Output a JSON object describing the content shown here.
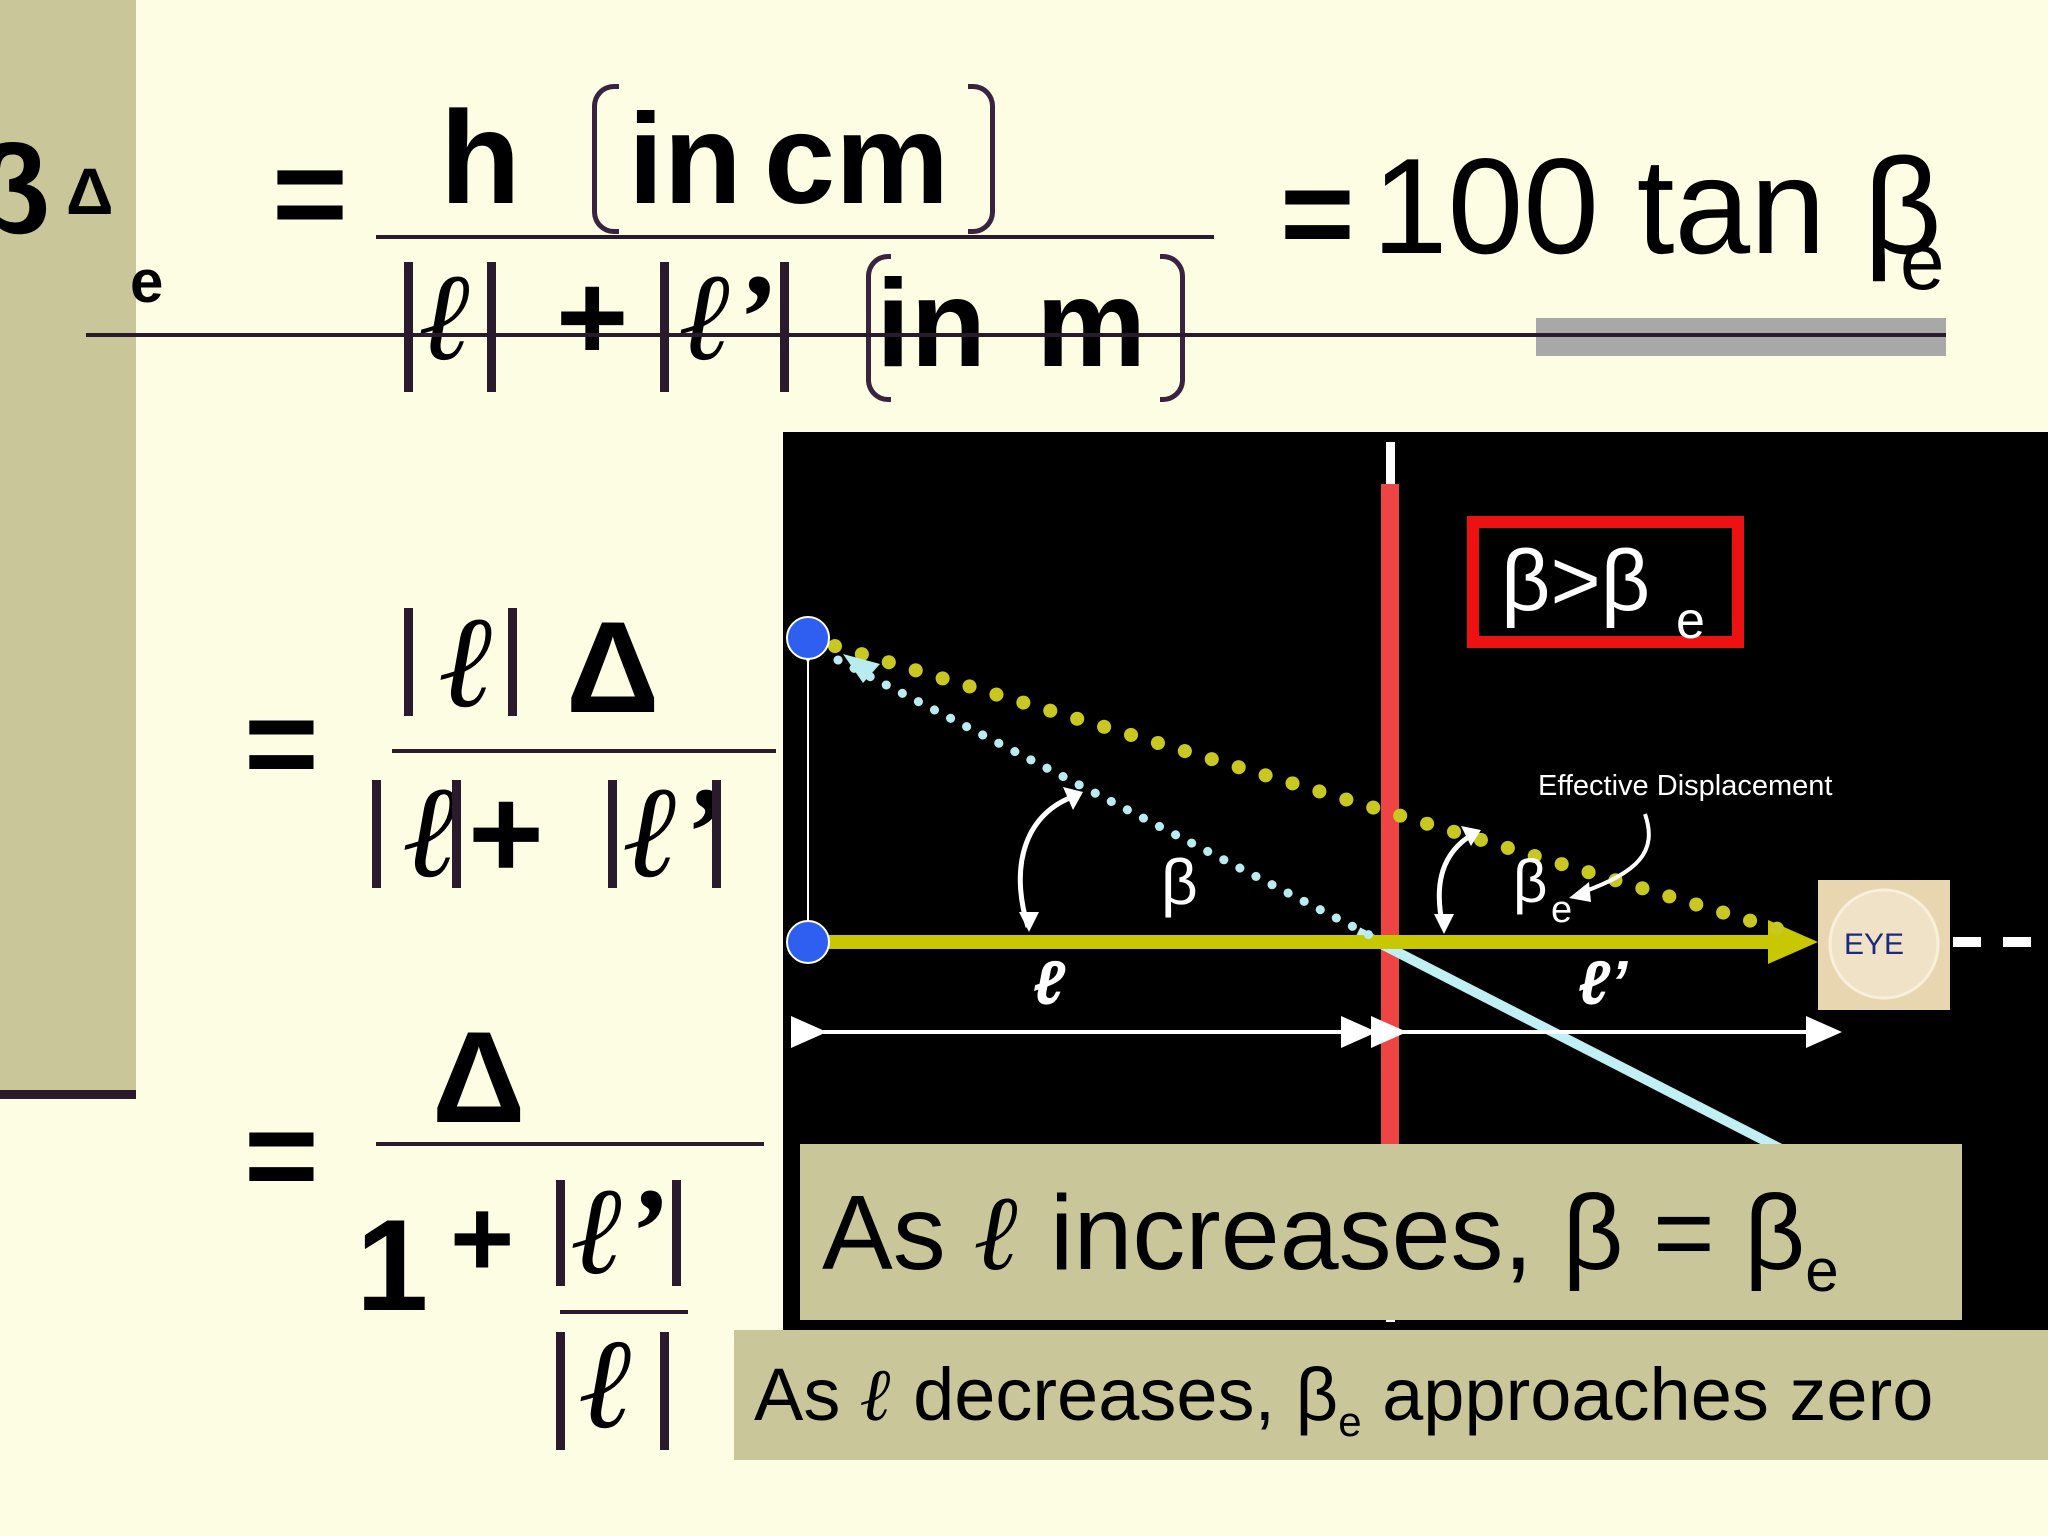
{
  "formula_top": {
    "lhs_symbol": "β",
    "lhs_super": "Δ",
    "lhs_sub": "e",
    "equals": "=",
    "num_h": "h",
    "num_in": "in",
    "num_cm": "cm",
    "den_l": "ℓ",
    "den_plus": "+",
    "den_lp": "ℓ’",
    "den_in": "in",
    "den_m": "m",
    "rhs_equals": "=",
    "rhs_expr": "100 tan β",
    "rhs_sub": "e"
  },
  "formula_mid": {
    "equals": "=",
    "num_l": "ℓ",
    "num_delta": "Δ",
    "den_l": "ℓ",
    "den_plus": "+",
    "den_lp": "ℓ’"
  },
  "formula_low": {
    "equals": "=",
    "num_delta": "Δ",
    "den_one": "1",
    "den_plus": "+",
    "frac_num": "ℓ’",
    "frac_den": "ℓ"
  },
  "diagram": {
    "relation_beta": "β>β",
    "relation_sub": "e",
    "effective_label": "Effective Displacement",
    "beta_label": "β",
    "beta_e_label": "β",
    "beta_e_sub": "e",
    "ell_label": "ℓ",
    "ell_prime_label": "ℓ’",
    "eye_label": "EYE",
    "colors": {
      "background": "#000000",
      "lens": "#ef4444",
      "axis": "#c8c800",
      "dotted_yellow": "#c8c820",
      "dotted_cyan": "#b8ecf0",
      "ray": "#c0f0f4",
      "box_border": "#ee1111",
      "points": "#2f5ff0"
    }
  },
  "caption_increase": {
    "prefix": "As ",
    "ell": "ℓ",
    "text": " increases, β = β",
    "sub": "e"
  },
  "caption_decrease": {
    "prefix": "As ",
    "ell": "ℓ",
    "text1": " decreases, β",
    "sub": "e",
    "text2": " approaches zero"
  }
}
